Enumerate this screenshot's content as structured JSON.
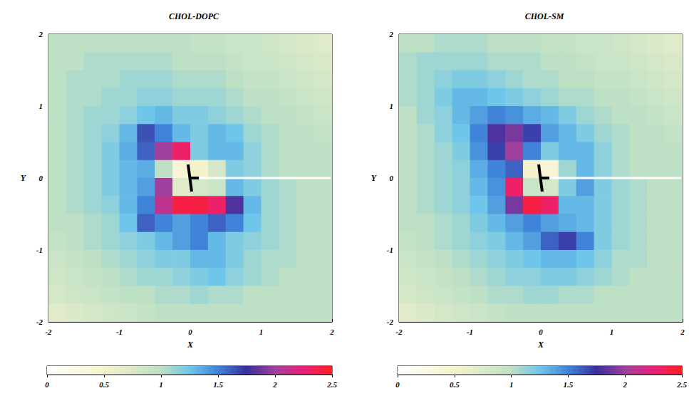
{
  "chart_data": [
    {
      "type": "heatmap",
      "title": "CHOL-DOPC",
      "x_label": "X",
      "y_label": "Y",
      "xlim": [
        -2,
        2
      ],
      "ylim": [
        -2,
        2
      ],
      "xticks": [
        -2,
        -1,
        0,
        1,
        2
      ],
      "yticks": [
        -2,
        -1,
        0,
        1,
        2
      ],
      "x": [
        -1.875,
        -1.625,
        -1.375,
        -1.125,
        -0.875,
        -0.625,
        -0.375,
        -0.125,
        0.125,
        0.375,
        0.625,
        0.875,
        1.125,
        1.375,
        1.625,
        1.875
      ],
      "y": [
        1.875,
        1.625,
        1.375,
        1.125,
        0.875,
        0.625,
        0.375,
        0.125,
        -0.125,
        -0.375,
        -0.625,
        -0.875,
        -1.125,
        -1.375,
        -1.625,
        -1.875
      ],
      "values": [
        [
          1.0,
          1.0,
          1.0,
          1.0,
          1.0,
          1.0,
          1.0,
          1.0,
          0.95,
          0.95,
          0.9,
          0.9,
          0.85,
          0.8,
          0.75,
          0.7
        ],
        [
          1.0,
          1.0,
          1.05,
          1.05,
          1.05,
          1.05,
          1.05,
          1.0,
          1.0,
          1.0,
          0.95,
          0.9,
          0.9,
          0.85,
          0.8,
          0.75
        ],
        [
          1.0,
          1.05,
          1.05,
          1.05,
          1.1,
          1.1,
          1.1,
          1.05,
          1.05,
          1.05,
          1.0,
          0.95,
          0.95,
          0.9,
          0.85,
          0.8
        ],
        [
          1.0,
          1.05,
          1.05,
          1.1,
          1.1,
          1.15,
          1.15,
          1.1,
          1.1,
          1.1,
          1.05,
          1.0,
          1.0,
          0.95,
          0.9,
          0.85
        ],
        [
          1.0,
          1.05,
          1.1,
          1.1,
          1.15,
          1.25,
          1.3,
          1.2,
          1.2,
          1.15,
          1.1,
          1.05,
          1.0,
          1.0,
          0.95,
          0.9
        ],
        [
          1.0,
          1.05,
          1.1,
          1.15,
          1.3,
          1.65,
          1.5,
          1.3,
          1.2,
          1.3,
          1.25,
          1.1,
          1.05,
          1.0,
          1.0,
          0.95
        ],
        [
          1.0,
          1.05,
          1.1,
          1.2,
          1.35,
          1.6,
          2.0,
          2.3,
          1.2,
          1.3,
          1.3,
          1.15,
          1.05,
          1.0,
          1.0,
          1.0
        ],
        [
          1.0,
          1.05,
          1.1,
          1.2,
          1.3,
          1.35,
          1.0,
          0.4,
          0.5,
          0.8,
          1.2,
          1.15,
          1.05,
          1.0,
          1.0,
          1.0
        ],
        [
          1.0,
          1.05,
          1.1,
          1.2,
          1.3,
          1.4,
          2.0,
          0.7,
          0.8,
          0.9,
          1.3,
          1.2,
          1.1,
          1.05,
          1.0,
          1.0
        ],
        [
          1.0,
          1.05,
          1.1,
          1.15,
          1.3,
          1.5,
          2.1,
          2.4,
          2.4,
          2.3,
          1.8,
          1.3,
          1.1,
          1.05,
          1.0,
          1.0
        ],
        [
          1.0,
          1.0,
          1.05,
          1.1,
          1.25,
          1.6,
          1.5,
          1.4,
          1.5,
          1.6,
          1.5,
          1.25,
          1.1,
          1.05,
          1.0,
          1.0
        ],
        [
          0.95,
          1.0,
          1.05,
          1.1,
          1.15,
          1.2,
          1.3,
          1.4,
          1.5,
          1.3,
          1.2,
          1.15,
          1.1,
          1.05,
          1.0,
          1.0
        ],
        [
          0.9,
          0.95,
          1.0,
          1.05,
          1.1,
          1.15,
          1.2,
          1.2,
          1.3,
          1.3,
          1.2,
          1.1,
          1.05,
          1.05,
          1.0,
          1.0
        ],
        [
          0.85,
          0.9,
          0.95,
          1.0,
          1.05,
          1.1,
          1.1,
          1.15,
          1.2,
          1.25,
          1.15,
          1.1,
          1.05,
          1.0,
          1.0,
          1.0
        ],
        [
          0.8,
          0.85,
          0.9,
          0.95,
          1.0,
          1.0,
          1.05,
          1.05,
          1.1,
          1.05,
          1.05,
          1.0,
          1.0,
          1.0,
          1.0,
          1.0
        ],
        [
          0.7,
          0.75,
          0.8,
          0.85,
          0.9,
          0.95,
          1.0,
          1.0,
          1.0,
          1.0,
          1.0,
          1.0,
          1.0,
          1.0,
          1.0,
          1.0
        ]
      ],
      "colorbar": {
        "range": [
          0,
          2.5
        ],
        "ticks": [
          0,
          0.5,
          1,
          1.5,
          2,
          2.5
        ]
      }
    },
    {
      "type": "heatmap",
      "title": "CHOL-SM",
      "x_label": "X",
      "y_label": "Y",
      "xlim": [
        -2,
        2
      ],
      "ylim": [
        -2,
        2
      ],
      "xticks": [
        -2,
        -1,
        0,
        1,
        2
      ],
      "yticks": [
        -2,
        -1,
        0,
        1,
        2
      ],
      "x": [
        -1.875,
        -1.625,
        -1.375,
        -1.125,
        -0.875,
        -0.625,
        -0.375,
        -0.125,
        0.125,
        0.375,
        0.625,
        0.875,
        1.125,
        1.375,
        1.625,
        1.875
      ],
      "y": [
        1.875,
        1.625,
        1.375,
        1.125,
        0.875,
        0.625,
        0.375,
        0.125,
        -0.125,
        -0.375,
        -0.625,
        -0.875,
        -1.125,
        -1.375,
        -1.625,
        -1.875
      ],
      "values": [
        [
          1.0,
          1.0,
          1.05,
          1.05,
          1.05,
          1.0,
          1.0,
          1.0,
          0.95,
          0.95,
          0.9,
          0.9,
          0.85,
          0.8,
          0.75,
          0.7
        ],
        [
          1.05,
          1.1,
          1.1,
          1.1,
          1.1,
          1.05,
          1.05,
          1.05,
          1.0,
          1.0,
          0.95,
          0.9,
          0.9,
          0.85,
          0.8,
          0.75
        ],
        [
          1.05,
          1.1,
          1.15,
          1.2,
          1.2,
          1.15,
          1.1,
          1.05,
          1.05,
          1.0,
          1.0,
          0.95,
          0.95,
          0.9,
          0.85,
          0.8
        ],
        [
          1.05,
          1.1,
          1.2,
          1.3,
          1.3,
          1.25,
          1.2,
          1.15,
          1.1,
          1.05,
          1.05,
          1.0,
          1.0,
          0.95,
          0.9,
          0.85
        ],
        [
          1.0,
          1.1,
          1.15,
          1.3,
          1.4,
          1.5,
          1.45,
          1.35,
          1.3,
          1.2,
          1.1,
          1.05,
          1.0,
          1.0,
          0.95,
          0.9
        ],
        [
          1.0,
          1.05,
          1.15,
          1.25,
          1.5,
          1.8,
          1.9,
          1.7,
          1.4,
          1.3,
          1.2,
          1.1,
          1.05,
          1.0,
          1.0,
          0.95
        ],
        [
          1.0,
          1.05,
          1.1,
          1.2,
          1.45,
          1.7,
          2.0,
          1.5,
          1.2,
          1.3,
          1.3,
          1.15,
          1.05,
          1.0,
          1.0,
          1.0
        ],
        [
          1.0,
          1.05,
          1.1,
          1.15,
          1.35,
          1.5,
          1.6,
          0.5,
          0.4,
          1.1,
          1.3,
          1.15,
          1.05,
          1.0,
          1.0,
          1.0
        ],
        [
          1.0,
          1.05,
          1.1,
          1.15,
          1.3,
          1.45,
          2.3,
          0.9,
          0.8,
          1.2,
          1.4,
          1.2,
          1.1,
          1.05,
          1.0,
          1.0
        ],
        [
          1.0,
          1.05,
          1.1,
          1.15,
          1.25,
          1.4,
          1.9,
          2.4,
          2.3,
          1.3,
          1.3,
          1.2,
          1.1,
          1.05,
          1.0,
          1.0
        ],
        [
          1.0,
          1.0,
          1.05,
          1.1,
          1.2,
          1.3,
          1.4,
          1.5,
          1.4,
          1.35,
          1.3,
          1.2,
          1.1,
          1.05,
          1.0,
          1.0
        ],
        [
          0.95,
          1.0,
          1.05,
          1.1,
          1.15,
          1.2,
          1.3,
          1.4,
          1.6,
          1.7,
          1.5,
          1.2,
          1.1,
          1.05,
          1.0,
          1.0
        ],
        [
          0.9,
          0.95,
          1.0,
          1.05,
          1.1,
          1.15,
          1.2,
          1.25,
          1.3,
          1.3,
          1.25,
          1.15,
          1.05,
          1.05,
          1.0,
          1.0
        ],
        [
          0.85,
          0.9,
          0.95,
          1.0,
          1.05,
          1.1,
          1.15,
          1.15,
          1.2,
          1.2,
          1.15,
          1.1,
          1.05,
          1.0,
          1.0,
          1.0
        ],
        [
          0.8,
          0.85,
          0.9,
          0.95,
          1.0,
          1.05,
          1.05,
          1.1,
          1.1,
          1.05,
          1.05,
          1.0,
          1.0,
          1.0,
          1.0,
          1.0
        ],
        [
          0.7,
          0.75,
          0.8,
          0.85,
          0.9,
          0.95,
          1.0,
          1.0,
          1.0,
          1.0,
          1.0,
          1.0,
          1.0,
          1.0,
          1.0,
          1.0
        ]
      ],
      "colorbar": {
        "range": [
          0,
          2.5
        ],
        "ticks": [
          0,
          0.5,
          1,
          1.5,
          2,
          2.5
        ]
      }
    }
  ]
}
